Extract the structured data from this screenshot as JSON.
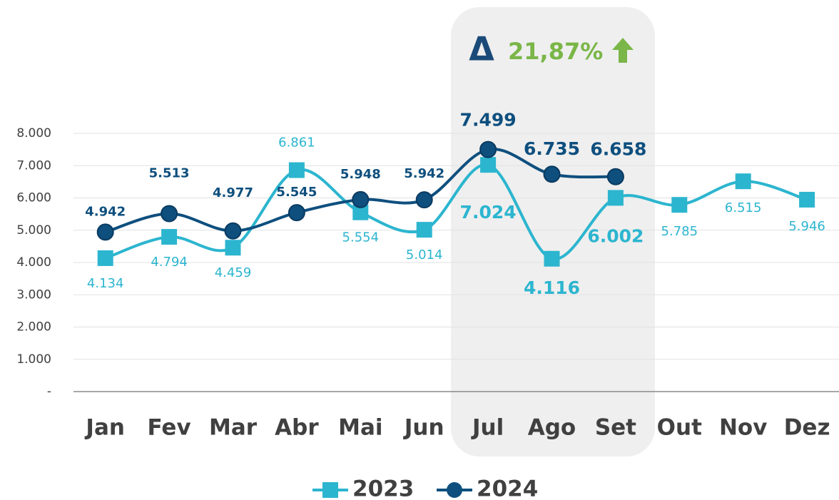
{
  "chart_data": {
    "type": "line",
    "categories": [
      "Jan",
      "Fev",
      "Mar",
      "Abr",
      "Mai",
      "Jun",
      "Jul",
      "Ago",
      "Set",
      "Out",
      "Nov",
      "Dez"
    ],
    "series": [
      {
        "name": "2023",
        "color": "#2cb5cf",
        "marker": "square",
        "values": [
          4134,
          4794,
          4459,
          6861,
          5554,
          5014,
          7024,
          4116,
          6002,
          5785,
          6515,
          5946
        ],
        "value_labels": [
          "4.134",
          "4.794",
          "4.459",
          "6.861",
          "5.554",
          "5.014",
          "7.024",
          "4.116",
          "6.002",
          "5.785",
          "6.515",
          "5.946"
        ]
      },
      {
        "name": "2024",
        "color": "#0e4f7e",
        "marker": "circle",
        "values": [
          4942,
          5513,
          4977,
          5545,
          5948,
          5942,
          7499,
          6735,
          6658,
          null,
          null,
          null
        ],
        "value_labels": [
          "4.942",
          "5.513",
          "4.977",
          "5.545",
          "5.948",
          "5.942",
          "7.499",
          "6.735",
          "6.658",
          null,
          null,
          null
        ]
      }
    ],
    "ylim": [
      0,
      8000
    ],
    "yticks": [
      {
        "value": 0,
        "label": "-"
      },
      {
        "value": 1000,
        "label": "1.000"
      },
      {
        "value": 2000,
        "label": "2.000"
      },
      {
        "value": 3000,
        "label": "3.000"
      },
      {
        "value": 4000,
        "label": "4.000"
      },
      {
        "value": 5000,
        "label": "5.000"
      },
      {
        "value": 6000,
        "label": "6.000"
      },
      {
        "value": 7000,
        "label": "7.000"
      },
      {
        "value": 8000,
        "label": "8.000"
      }
    ],
    "grid": true,
    "annotation": {
      "symbol": "Δ",
      "text": "21,87%"
    }
  }
}
